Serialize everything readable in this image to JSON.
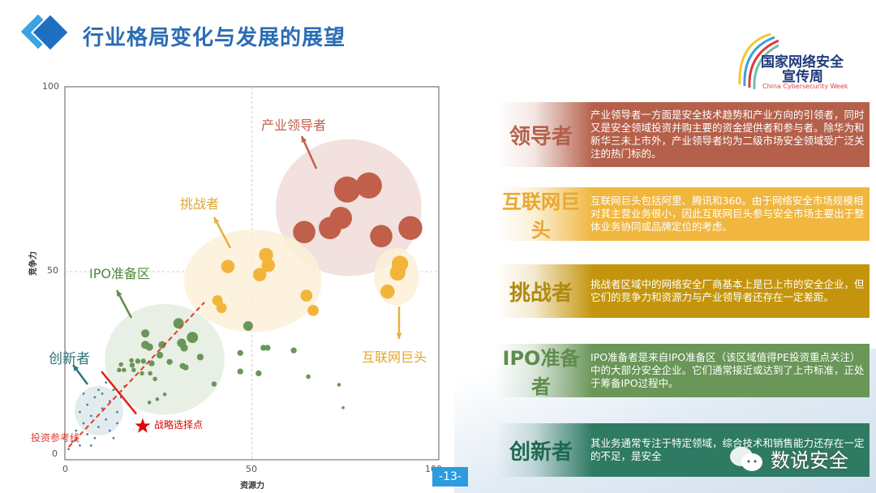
{
  "header": {
    "title": "行业格局变化与发展的展望"
  },
  "logo": {
    "line1": "国家网络安全",
    "line2": "宣传周",
    "line3": "China Cybersecurity Week"
  },
  "page_number": "-13-",
  "watermark": "数说安全",
  "panels": [
    {
      "name": "领导者",
      "color": "#b5604a",
      "text": "产业领导者一方面是安全技术趋势和产业方向的引领者，同时又是安全领域投资并购主要的资金提供者和参与者。除华为和新华三未上市外，产业领导者均为二级市场安全领域受广泛关注的热门标的。"
    },
    {
      "name": "互联网巨头",
      "color": "#f0b63e",
      "text": "互联网巨头包括阿里、腾讯和360。由于网络安全市场规模相对其主营业务很小，因此互联网巨头参与安全市场主要出于整体业务协同或品牌定位的考虑。"
    },
    {
      "name": "挑战者",
      "color": "#c4950c",
      "text": "挑战者区域中的网络安全厂商基本上是已上市的安全企业，但它们的竞争力和资源力与产业领导者还存在一定差距。"
    },
    {
      "name": "IPO准备者",
      "color": "#6a9658",
      "text": "IPO准备者是来自IPO准备区（该区域值得PE投资重点关注）中的大部分安全企业。它们通常接近或达到了上市标准，正处于筹备IPO过程中。"
    },
    {
      "name": "创新者",
      "color": "#2e7a62",
      "text": "其业务通常专注于特定领域，综合技术和销售能力还存在一定的不足，是安全"
    }
  ],
  "chart_data": {
    "type": "scatter",
    "xlabel": "资源力",
    "ylabel": "竞争力",
    "xlim": [
      0,
      100
    ],
    "ylim": [
      0,
      100
    ],
    "xticks": [
      "0",
      "50",
      "100"
    ],
    "yticks": [
      "0",
      "50",
      "100"
    ],
    "grid": "dashed lines at 50",
    "groups": [
      {
        "label": "产业领导者",
        "color": "#c0604a",
        "region": {
          "cx": 75.9,
          "cy": 67.3,
          "rx": 19.5,
          "ry": 18.3,
          "fill": "#f0dcd8"
        },
        "points": [
          [
            64,
            60.7,
            3
          ],
          [
            70.9,
            61.8,
            3
          ],
          [
            73.8,
            64.5,
            3
          ],
          [
            75.5,
            72.2,
            3.5
          ],
          [
            81.3,
            73.3,
            3.5
          ],
          [
            84.6,
            59.6,
            3
          ],
          [
            92.4,
            61.8,
            3.2
          ]
        ]
      },
      {
        "label": "挑战者",
        "color": "#f2b53a",
        "region": {
          "cx": 50.3,
          "cy": 47.5,
          "rx": 18.4,
          "ry": 13.7,
          "fill": "#fcf0d8"
        },
        "points": [
          [
            43.6,
            51.4,
            1.8
          ],
          [
            53.8,
            54.5,
            1.9
          ],
          [
            54.4,
            51.7,
            1.8
          ],
          [
            52.1,
            49.2,
            1.8
          ],
          [
            64.6,
            43.5,
            1.6
          ],
          [
            66.4,
            39.5,
            1.5
          ],
          [
            40.8,
            42.2,
            1.4
          ],
          [
            41.9,
            40.2,
            1.4
          ]
        ]
      },
      {
        "label": "互联网巨头",
        "color": "#f2b53a",
        "region": {
          "cx": 88.7,
          "cy": 48.6,
          "rx": 6,
          "ry": 7.7,
          "fill": "#fcf0d8"
        },
        "points": [
          [
            89.6,
            52.1,
            2.2
          ],
          [
            89,
            49.7,
            2.1
          ],
          [
            86.3,
            44.6,
            1.9
          ]
        ]
      },
      {
        "label": "IPO准备区",
        "color": "#6a9658",
        "region": {
          "cx": 26.7,
          "cy": 26.3,
          "rx": 16,
          "ry": 14.8,
          "fill": "#e4ecdf"
        },
        "points": [
          [
            30.4,
            36,
            1.4
          ],
          [
            21.5,
            33.3,
            1.1
          ],
          [
            21.5,
            30.2,
            1.1
          ],
          [
            22.6,
            29.6,
            1.0
          ],
          [
            26,
            30.2,
            1.0
          ],
          [
            31.2,
            30.7,
            1.2
          ],
          [
            31.9,
            29.4,
            1.0
          ],
          [
            34.1,
            32.2,
            1.5
          ],
          [
            36.2,
            26.9,
            0.9
          ],
          [
            25.4,
            27.4,
            0.9
          ],
          [
            28,
            25.6,
            0.8
          ],
          [
            23.2,
            25.2,
            0.8
          ],
          [
            31.5,
            24.5,
            0.8
          ],
          [
            32.3,
            24.1,
            0.8
          ],
          [
            15,
            24.9,
            0.6
          ],
          [
            18,
            24.7,
            0.7
          ],
          [
            19.5,
            25.8,
            0.7
          ],
          [
            21,
            25.8,
            0.7
          ],
          [
            17.8,
            26,
            0.6
          ],
          [
            14.5,
            23.4,
            0.6
          ],
          [
            15.8,
            23.4,
            0.6
          ],
          [
            18.4,
            23.4,
            0.6
          ],
          [
            20.6,
            22.5,
            0.6
          ],
          [
            22.8,
            22.5,
            0.6
          ],
          [
            24.1,
            21,
            0.6
          ],
          [
            39.9,
            19.6,
            0.7
          ],
          [
            26.7,
            16.8,
            0.5
          ],
          [
            22.6,
            14.6,
            0.5
          ],
          [
            24.7,
            15.5,
            0.5
          ],
          [
            49,
            35.3,
            1.3
          ],
          [
            46.9,
            28,
            0.8
          ],
          [
            46.9,
            23,
            0.8
          ],
          [
            51.8,
            22.5,
            0.8
          ],
          [
            53.1,
            29.4,
            0.8
          ],
          [
            54.2,
            29.4,
            0.8
          ],
          [
            61.2,
            28.7,
            0.8
          ],
          [
            65.1,
            21.6,
            0.6
          ],
          [
            73.3,
            19.4,
            0.5
          ],
          [
            74.4,
            13.2,
            0.4
          ]
        ]
      },
      {
        "label": "创新者",
        "color": "#4a7f98",
        "region": {
          "cx": 9.1,
          "cy": 12.4,
          "rx": 6.5,
          "ry": 6.6,
          "fill": "#dde8ea"
        },
        "points": [
          [
            4,
            12,
            0.3
          ],
          [
            5,
            9,
            0.3
          ],
          [
            6,
            14,
            0.3
          ],
          [
            7,
            11,
            0.3
          ],
          [
            8,
            16,
            0.3
          ],
          [
            9,
            8,
            0.3
          ],
          [
            10,
            13,
            0.3
          ],
          [
            11,
            10,
            0.3
          ],
          [
            12,
            15,
            0.3
          ],
          [
            13,
            18,
            0.3
          ],
          [
            14,
            12,
            0.3
          ],
          [
            3,
            7,
            0.3
          ],
          [
            6,
            6,
            0.3
          ],
          [
            8,
            5,
            0.3
          ],
          [
            10,
            17,
            0.3
          ],
          [
            12,
            7,
            0.3
          ],
          [
            15,
            16,
            0.3
          ],
          [
            16,
            19,
            0.3
          ],
          [
            5,
            17,
            0.3
          ],
          [
            2,
            4,
            0.3
          ],
          [
            1,
            2,
            0.3
          ],
          [
            11,
            20,
            0.3
          ],
          [
            14,
            9,
            0.3
          ],
          [
            7,
            3,
            0.3
          ],
          [
            9,
            18,
            0.3
          ],
          [
            17,
            14,
            0.3
          ],
          [
            13,
            5,
            0.3
          ],
          [
            4,
            3,
            0.3
          ]
        ]
      }
    ],
    "annotations": {
      "reference_line": {
        "label": "投资参考线",
        "from": [
          1,
          2.6
        ],
        "to": [
          37.3,
          41.7
        ],
        "color": "#e53a2e"
      },
      "strategy_line": {
        "from": [
          9.8,
          23
        ],
        "to": [
          19.1,
          11.5
        ],
        "color": "#e02020"
      },
      "strategy_point": {
        "label": "战略选择点",
        "at": [
          20.8,
          8.2
        ],
        "color": "#e00000"
      }
    }
  }
}
